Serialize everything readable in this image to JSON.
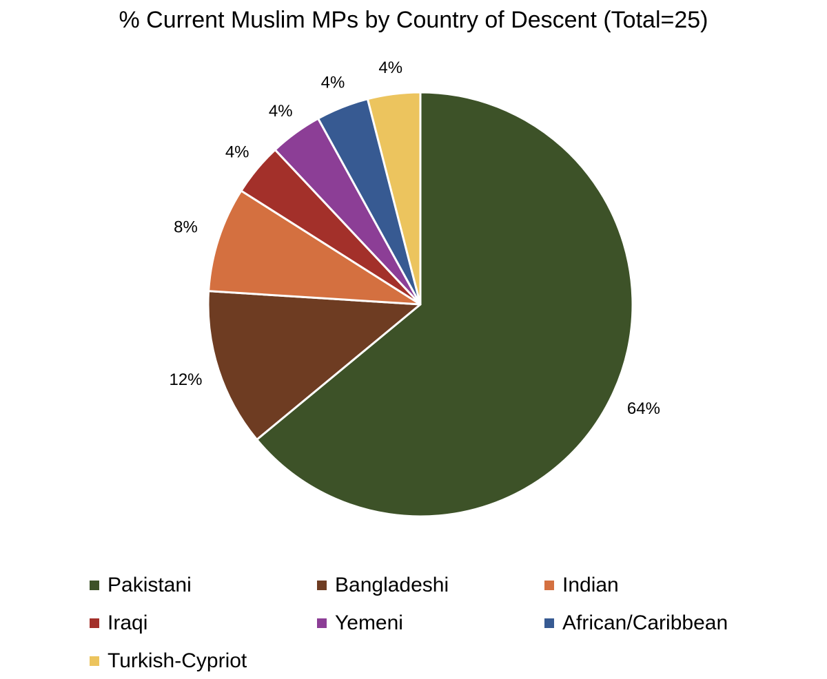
{
  "chart_data": {
    "type": "pie",
    "title": "% Current Muslim MPs by Country of Descent (Total=25)",
    "slices": [
      {
        "label": "Pakistani",
        "value": 64,
        "display": "64%",
        "color": "#3d5228"
      },
      {
        "label": "Bangladeshi",
        "value": 12,
        "display": "12%",
        "color": "#6e3c22"
      },
      {
        "label": "Indian",
        "value": 8,
        "display": "8%",
        "color": "#d47040"
      },
      {
        "label": "Iraqi",
        "value": 4,
        "display": "4%",
        "color": "#a3302a"
      },
      {
        "label": "Yemeni",
        "value": 4,
        "display": "4%",
        "color": "#8c3e96"
      },
      {
        "label": "African/Caribbean",
        "value": 4,
        "display": "4%",
        "color": "#375a92"
      },
      {
        "label": "Turkish-Cypriot",
        "value": 4,
        "display": "4%",
        "color": "#ecc45e"
      }
    ],
    "legend_position": "bottom"
  }
}
